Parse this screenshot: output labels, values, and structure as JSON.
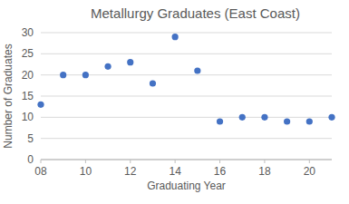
{
  "chart_data": {
    "type": "scatter",
    "title": "Metallurgy Graduates (East Coast)",
    "x_label": "Graduating Year",
    "y_label": "Number of Graduates",
    "x": [
      8,
      9,
      10,
      11,
      12,
      13,
      14,
      15,
      16,
      17,
      18,
      19,
      20,
      21
    ],
    "values": [
      13,
      20,
      20,
      22,
      23,
      18,
      29,
      21,
      9,
      10,
      10,
      9,
      9,
      10
    ],
    "color": "#4472c4",
    "marker": "circle",
    "xlim": [
      8,
      21
    ],
    "xticks": [
      {
        "value": 8,
        "label": "08"
      },
      10,
      12,
      14,
      16,
      18,
      20
    ],
    "ylim": [
      0,
      30
    ],
    "yticks": [
      0,
      5,
      10,
      15,
      20,
      25,
      30
    ],
    "grid": true
  }
}
